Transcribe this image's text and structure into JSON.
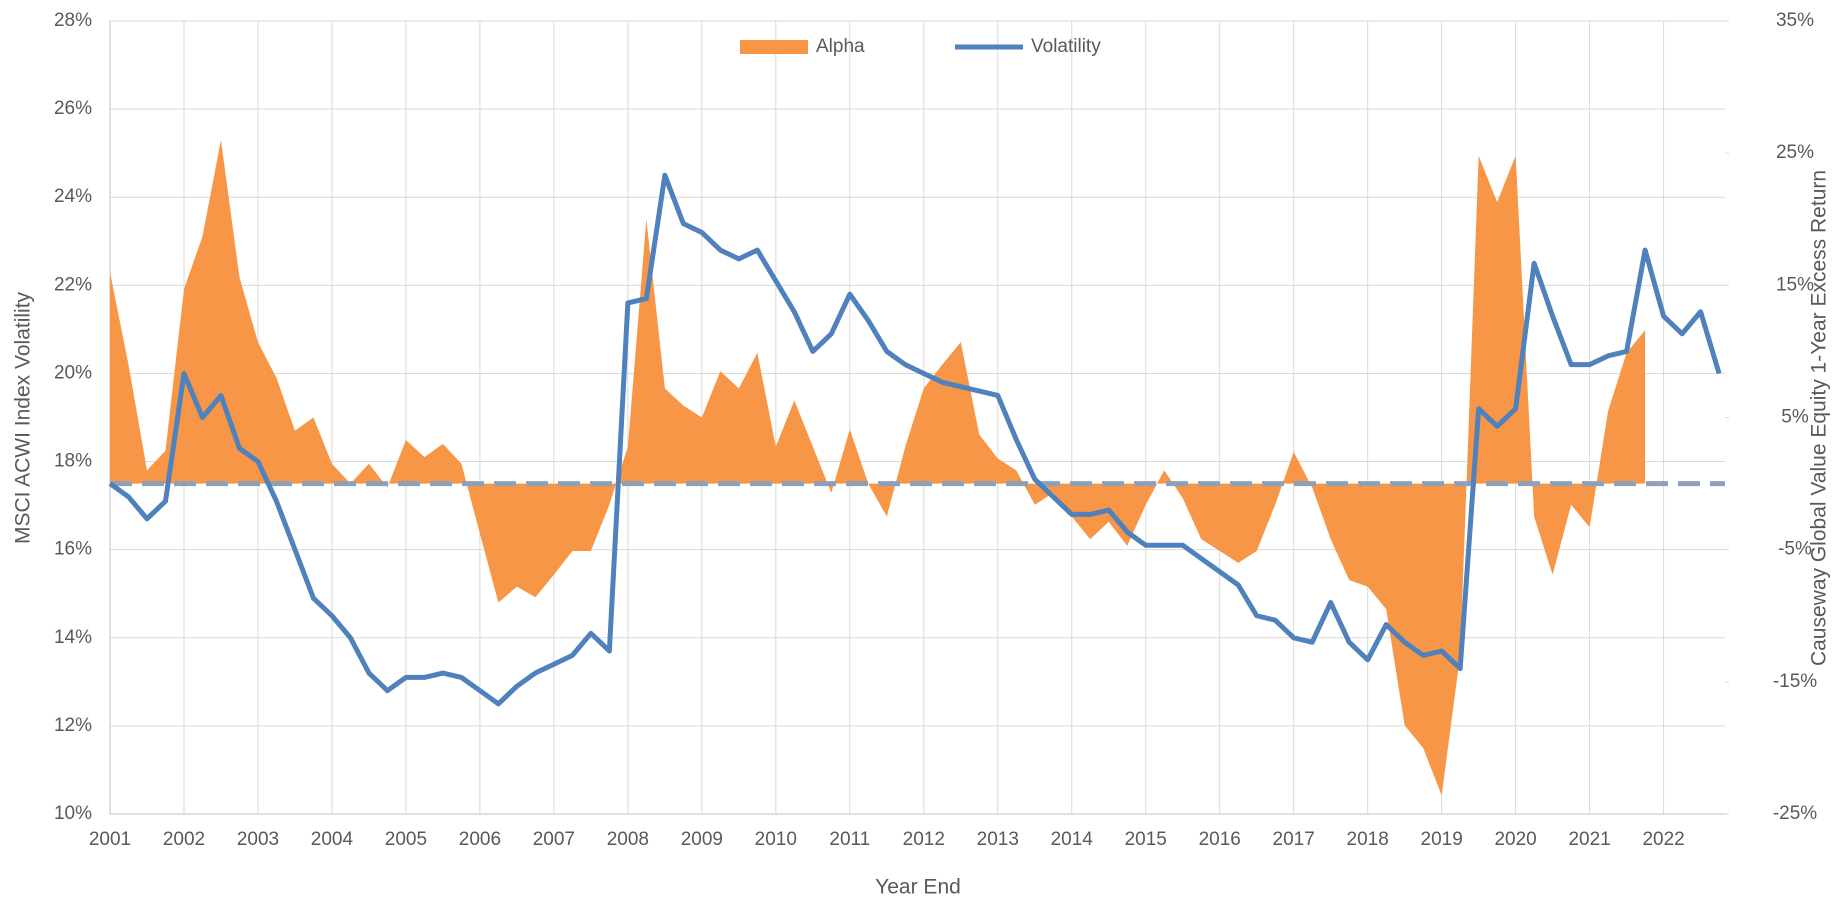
{
  "chart_data": {
    "type": "area-line",
    "x_label": "Year End",
    "y_label": "MSCI ACWI Index Volatility",
    "y2_label": "Causeway Global Value Equity 1-Year Excess Return",
    "xlim": [
      2001,
      2022.83
    ],
    "xticks": [
      2001,
      2002,
      2003,
      2004,
      2005,
      2006,
      2007,
      2008,
      2009,
      2010,
      2011,
      2012,
      2013,
      2014,
      2015,
      2016,
      2017,
      2018,
      2019,
      2020,
      2021,
      2022
    ],
    "ylim": [
      10,
      28
    ],
    "yticks": [
      {
        "value": 10,
        "label": "10%"
      },
      {
        "value": 12,
        "label": "12%"
      },
      {
        "value": 14,
        "label": "14%"
      },
      {
        "value": 16,
        "label": "16%"
      },
      {
        "value": 18,
        "label": "18%"
      },
      {
        "value": 20,
        "label": "20%"
      },
      {
        "value": 22,
        "label": "22%"
      },
      {
        "value": 24,
        "label": "24%"
      },
      {
        "value": 26,
        "label": "26%"
      },
      {
        "value": 28,
        "label": "28%"
      }
    ],
    "y2lim": [
      -25,
      35
    ],
    "y2ticks": [
      {
        "value": -25,
        "label": "-25%"
      },
      {
        "value": -15,
        "label": "-15%"
      },
      {
        "value": -5,
        "label": "-5%"
      },
      {
        "value": 5,
        "label": "5%"
      },
      {
        "value": 15,
        "label": "15%"
      },
      {
        "value": 25,
        "label": "25%"
      },
      {
        "value": 35,
        "label": "35%"
      }
    ],
    "grid": true,
    "legend": "top",
    "x": [
      2001,
      2001.25,
      2001.5,
      2001.75,
      2002,
      2002.25,
      2002.5,
      2002.75,
      2003,
      2003.25,
      2003.5,
      2003.75,
      2004,
      2004.25,
      2004.5,
      2004.75,
      2005,
      2005.25,
      2005.5,
      2005.75,
      2006,
      2006.25,
      2006.5,
      2006.75,
      2007,
      2007.25,
      2007.5,
      2007.75,
      2008,
      2008.25,
      2008.5,
      2008.75,
      2009,
      2009.25,
      2009.5,
      2009.75,
      2010,
      2010.25,
      2010.5,
      2010.75,
      2011,
      2011.25,
      2011.5,
      2011.75,
      2012,
      2012.25,
      2012.5,
      2012.75,
      2013,
      2013.25,
      2013.5,
      2013.75,
      2014,
      2014.25,
      2014.5,
      2014.75,
      2015,
      2015.25,
      2015.5,
      2015.75,
      2016,
      2016.25,
      2016.5,
      2016.75,
      2017,
      2017.25,
      2017.5,
      2017.75,
      2018,
      2018.25,
      2018.5,
      2018.75,
      2019,
      2019.25,
      2019.5,
      2019.75,
      2020,
      2020.25,
      2020.5,
      2020.75,
      2021,
      2021.25,
      2021.5,
      2021.75,
      2022,
      2022.25,
      2022.5,
      2022.75
    ],
    "series": [
      {
        "name": "Alpha",
        "kind": "area",
        "axis": "y2",
        "color": "#f79646",
        "values": [
          16,
          9,
          1,
          2.5,
          14.7,
          18.7,
          26,
          15.6,
          10.7,
          8,
          4,
          5,
          1.5,
          0,
          1.5,
          -0.3,
          3.3,
          2,
          3,
          1.5,
          -3.8,
          -9,
          -7.8,
          -8.6,
          -6.9,
          -5.1,
          -5.1,
          -1.6,
          2.8,
          20,
          7.2,
          5.9,
          5,
          8.5,
          7.2,
          9.9,
          2.8,
          6.3,
          2.8,
          -0.7,
          4.1,
          0,
          -2.5,
          2.8,
          7.2,
          9,
          10.7,
          3.7,
          1.9,
          1,
          -1.6,
          -0.7,
          -2.5,
          -4.2,
          -2.9,
          -4.7,
          -1.6,
          1,
          -1.1,
          -4.2,
          -5.1,
          -6,
          -5.1,
          -1.6,
          2.4,
          -0.3,
          -4.2,
          -7.3,
          -7.8,
          -9.5,
          -18.3,
          -20,
          -23.6,
          -13,
          24.8,
          21.3,
          24.8,
          -2.5,
          -6.9,
          -1.6,
          -3.3,
          5.5,
          9.9,
          11.6,
          null,
          null,
          null,
          null
        ]
      },
      {
        "name": "Volatility",
        "kind": "line",
        "color": "#4f81bd",
        "values": [
          17.5,
          17.2,
          16.7,
          17.1,
          20,
          19,
          19.5,
          18.3,
          18,
          17.1,
          16,
          14.9,
          14.5,
          14,
          13.2,
          12.8,
          13.1,
          13.1,
          13.2,
          13.1,
          12.8,
          12.5,
          12.9,
          13.2,
          13.4,
          13.6,
          14.1,
          13.7,
          21.6,
          21.7,
          24.5,
          23.4,
          23.2,
          22.8,
          22.6,
          22.8,
          22.1,
          21.4,
          20.5,
          20.9,
          21.8,
          21.2,
          20.5,
          20.2,
          20,
          19.8,
          19.7,
          19.6,
          19.5,
          18.5,
          17.6,
          17.2,
          16.8,
          16.8,
          16.9,
          16.4,
          16.1,
          16.1,
          16.1,
          15.8,
          15.5,
          15.2,
          14.5,
          14.4,
          14,
          13.9,
          14.8,
          13.9,
          13.5,
          14.3,
          13.9,
          13.6,
          13.7,
          13.3,
          19.2,
          18.8,
          19.2,
          22.5,
          21.3,
          20.2,
          20.2,
          20.4,
          20.5,
          22.8,
          21.3,
          20.9,
          21.4,
          20
        ]
      }
    ]
  }
}
